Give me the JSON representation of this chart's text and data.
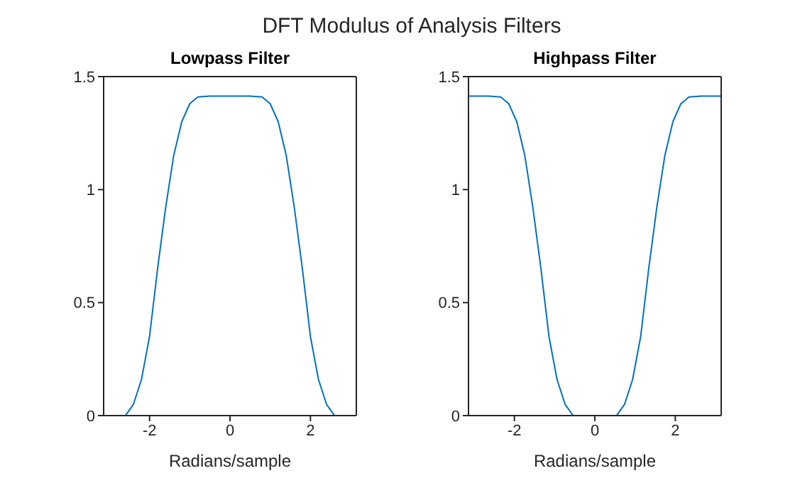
{
  "chart_data": [
    {
      "type": "line",
      "title": "Lowpass Filter",
      "annotations": [
        "DFT Modulus of Analysis Filters"
      ],
      "xlabel": "Radians/sample",
      "x": [
        -3.1416,
        -2.6,
        -2.4,
        -2.2,
        -2.0,
        -1.9,
        -1.8,
        -1.6,
        -1.4,
        -1.2,
        -1.0,
        -0.8,
        -0.5,
        0,
        0.5,
        0.8,
        1.0,
        1.2,
        1.4,
        1.6,
        1.8,
        1.9,
        2.0,
        2.2,
        2.4,
        2.6,
        3.1416
      ],
      "series": [
        {
          "color": "#0072bd",
          "values": [
            0,
            0,
            0.05,
            0.16,
            0.35,
            0.5,
            0.65,
            0.92,
            1.15,
            1.3,
            1.38,
            1.41,
            1.414,
            1.414,
            1.414,
            1.41,
            1.38,
            1.3,
            1.15,
            0.92,
            0.65,
            0.5,
            0.35,
            0.16,
            0.05,
            0,
            0
          ]
        }
      ],
      "xlim": [
        -3.1416,
        3.1416
      ],
      "xticks": [
        -2,
        0,
        2
      ],
      "ylim": [
        0,
        1.5
      ],
      "yticks": [
        0,
        0.5,
        1,
        1.5
      ],
      "grid": false,
      "legend": false,
      "line_style": "solid"
    },
    {
      "type": "line",
      "title": "Highpass Filter",
      "xlabel": "Radians/sample",
      "x": [
        -3.1416,
        -2.64,
        -2.34,
        -2.14,
        -1.94,
        -1.74,
        -1.54,
        -1.34,
        -1.24,
        -1.14,
        -0.94,
        -0.74,
        -0.54,
        0,
        0.54,
        0.74,
        0.94,
        1.14,
        1.24,
        1.34,
        1.54,
        1.74,
        1.94,
        2.14,
        2.34,
        2.64,
        3.1416
      ],
      "series": [
        {
          "color": "#0072bd",
          "values": [
            1.414,
            1.414,
            1.41,
            1.38,
            1.3,
            1.15,
            0.92,
            0.65,
            0.5,
            0.35,
            0.16,
            0.05,
            0,
            0,
            0,
            0.05,
            0.16,
            0.35,
            0.5,
            0.65,
            0.92,
            1.15,
            1.3,
            1.38,
            1.41,
            1.414,
            1.414
          ]
        }
      ],
      "xlim": [
        -3.1416,
        3.1416
      ],
      "xticks": [
        -2,
        0,
        2
      ],
      "ylim": [
        0,
        1.5
      ],
      "yticks": [
        0,
        0.5,
        1,
        1.5
      ],
      "grid": false,
      "legend": false,
      "line_style": "solid"
    }
  ]
}
